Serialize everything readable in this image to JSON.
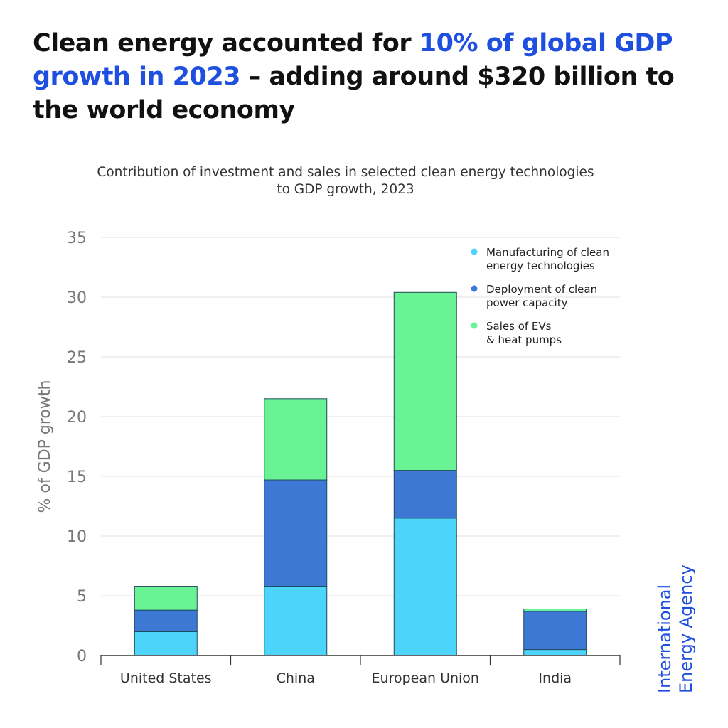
{
  "title": {
    "part1": "Clean energy accounted for ",
    "highlight": "10% of global GDP growth in 2023",
    "part2": " – adding around $320 billion to the world economy"
  },
  "logo": {
    "line1": "International",
    "line2": "Energy Agency"
  },
  "chart_data": {
    "type": "bar",
    "stacked": true,
    "title": "Contribution of investment and sales in selected clean energy technologies to GDP growth, 2023",
    "subtitle_line1": "Contribution of investment and sales in selected clean energy technologies",
    "subtitle_line2": "to GDP growth, 2023",
    "ylabel": "% of GDP growth",
    "xlabel": "",
    "ylim": [
      0,
      35
    ],
    "yticks": [
      0,
      5,
      10,
      15,
      20,
      25,
      30,
      35
    ],
    "grid": true,
    "legend_placement": "top-right",
    "categories": [
      "United States",
      "China",
      "European Union",
      "India"
    ],
    "series": [
      {
        "name": "Manufacturing of clean energy technologies",
        "legend_lines": [
          "Manufacturing of clean",
          "energy technologies"
        ],
        "color": "#4dd4fb",
        "values": [
          2.0,
          5.8,
          11.5,
          0.5
        ]
      },
      {
        "name": "Deployment of clean power capacity",
        "legend_lines": [
          "Deployment of clean",
          "power capacity"
        ],
        "color": "#3d79d4",
        "values": [
          1.8,
          8.9,
          4.0,
          3.2
        ]
      },
      {
        "name": "Sales of EVs & heat pumps",
        "legend_lines": [
          "Sales of EVs",
          "& heat pumps"
        ],
        "color": "#69f395",
        "values": [
          2.0,
          6.8,
          14.9,
          0.2
        ]
      }
    ]
  }
}
